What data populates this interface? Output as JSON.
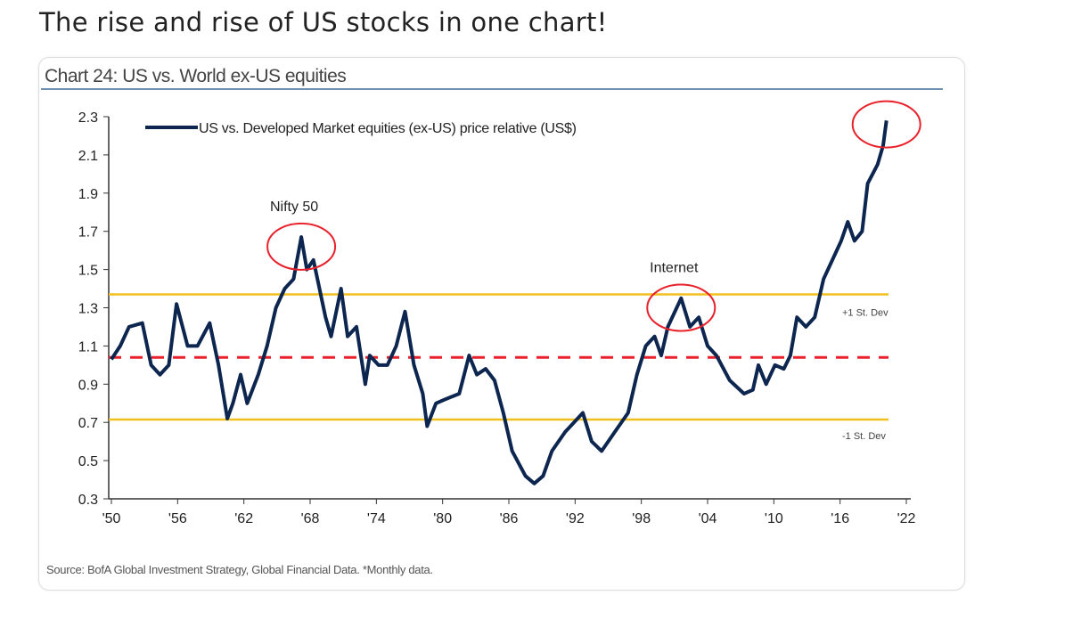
{
  "headline": "The rise and rise of US stocks in one chart!",
  "chart_data": {
    "type": "line",
    "title": "Chart 24: US vs. World ex-US equities",
    "source": "Source: BofA Global Investment Strategy, Global Financial Data. *Monthly data.",
    "xlim": [
      1950,
      2022
    ],
    "ylim": [
      0.3,
      2.3
    ],
    "x_ticks": [
      1950,
      1956,
      1962,
      1968,
      1974,
      1980,
      1986,
      1992,
      1998,
      2004,
      2010,
      2016,
      2022
    ],
    "x_tick_labels": [
      "'50",
      "'56",
      "'62",
      "'68",
      "'74",
      "'80",
      "'86",
      "'92",
      "'98",
      "'04",
      "'10",
      "'16",
      "'22"
    ],
    "y_ticks": [
      0.3,
      0.5,
      0.7,
      0.9,
      1.1,
      1.3,
      1.5,
      1.7,
      1.9,
      2.1,
      2.3
    ],
    "y_tick_labels": [
      "0.3",
      "0.5",
      "0.7",
      "0.9",
      "1.1",
      "1.3",
      "1.5",
      "1.7",
      "1.9",
      "2.1",
      "2.3"
    ],
    "grid": false,
    "legend_position": "top-left",
    "series": [
      {
        "name": "US vs. Developed Market equities (ex-US) price relative (US$)",
        "color": "#0d2650",
        "x": [
          1950,
          1950.8,
          1951.6,
          1952.8,
          1953.6,
          1954.4,
          1955.2,
          1955.9,
          1956.9,
          1957.8,
          1958.9,
          1959.7,
          1960.5,
          1961,
          1961.7,
          1962.3,
          1963.3,
          1964.1,
          1964.9,
          1965.7,
          1966.5,
          1967.2,
          1967.7,
          1968.3,
          1969.4,
          1969.9,
          1970.8,
          1971.4,
          1972.2,
          1973,
          1973.4,
          1974.2,
          1975,
          1975.8,
          1976.6,
          1977.4,
          1978.2,
          1978.6,
          1979.4,
          1980.2,
          1981.5,
          1982.4,
          1983.1,
          1983.9,
          1984.7,
          1985.5,
          1986.3,
          1987.5,
          1988.3,
          1989.1,
          1989.9,
          1991.1,
          1992.7,
          1993.5,
          1994.4,
          1995.6,
          1996.8,
          1997.6,
          1998.4,
          1999.2,
          1999.8,
          2000.4,
          2001.6,
          2002.4,
          2003.2,
          2004,
          2004.8,
          2006,
          2007.3,
          2008.1,
          2008.6,
          2009.3,
          2010.1,
          2010.9,
          2011.5,
          2012.1,
          2012.9,
          2013.7,
          2014.5,
          2015.3,
          2016.1,
          2016.7,
          2017.3,
          2018,
          2018.5,
          2019.4,
          2019.9,
          2020.2
        ],
        "y": [
          1.03,
          1.1,
          1.2,
          1.22,
          1.0,
          0.95,
          1.0,
          1.32,
          1.1,
          1.1,
          1.22,
          1.0,
          0.72,
          0.8,
          0.95,
          0.8,
          0.95,
          1.1,
          1.3,
          1.4,
          1.45,
          1.67,
          1.5,
          1.55,
          1.25,
          1.15,
          1.4,
          1.15,
          1.2,
          0.9,
          1.05,
          1.0,
          1.0,
          1.1,
          1.28,
          1.0,
          0.85,
          0.68,
          0.8,
          0.82,
          0.85,
          1.05,
          0.95,
          0.98,
          0.92,
          0.75,
          0.55,
          0.42,
          0.38,
          0.42,
          0.55,
          0.65,
          0.75,
          0.6,
          0.55,
          0.65,
          0.75,
          0.95,
          1.1,
          1.15,
          1.05,
          1.2,
          1.35,
          1.2,
          1.25,
          1.1,
          1.05,
          0.92,
          0.85,
          0.87,
          1.0,
          0.9,
          1.0,
          0.98,
          1.05,
          1.25,
          1.2,
          1.25,
          1.45,
          1.55,
          1.65,
          1.75,
          1.65,
          1.7,
          1.95,
          2.05,
          2.15,
          2.28
        ]
      }
    ],
    "reference_lines": [
      {
        "label": "+1 St. Dev",
        "value": 1.37,
        "color": "#f2c01e",
        "style": "solid"
      },
      {
        "label": "",
        "value": 1.04,
        "color": "#e8212b",
        "style": "dashed"
      },
      {
        "label": "-1 St. Dev",
        "value": 0.715,
        "color": "#f2c01e",
        "style": "solid"
      }
    ],
    "annotations": [
      {
        "text": "Nifty 50",
        "x": 1967.2,
        "y": 1.62
      },
      {
        "text": "Internet",
        "x": 2001.6,
        "y": 1.3
      },
      {
        "text": "",
        "x": 2020.2,
        "y": 2.26
      }
    ],
    "annotation_color": "#e8212b"
  }
}
